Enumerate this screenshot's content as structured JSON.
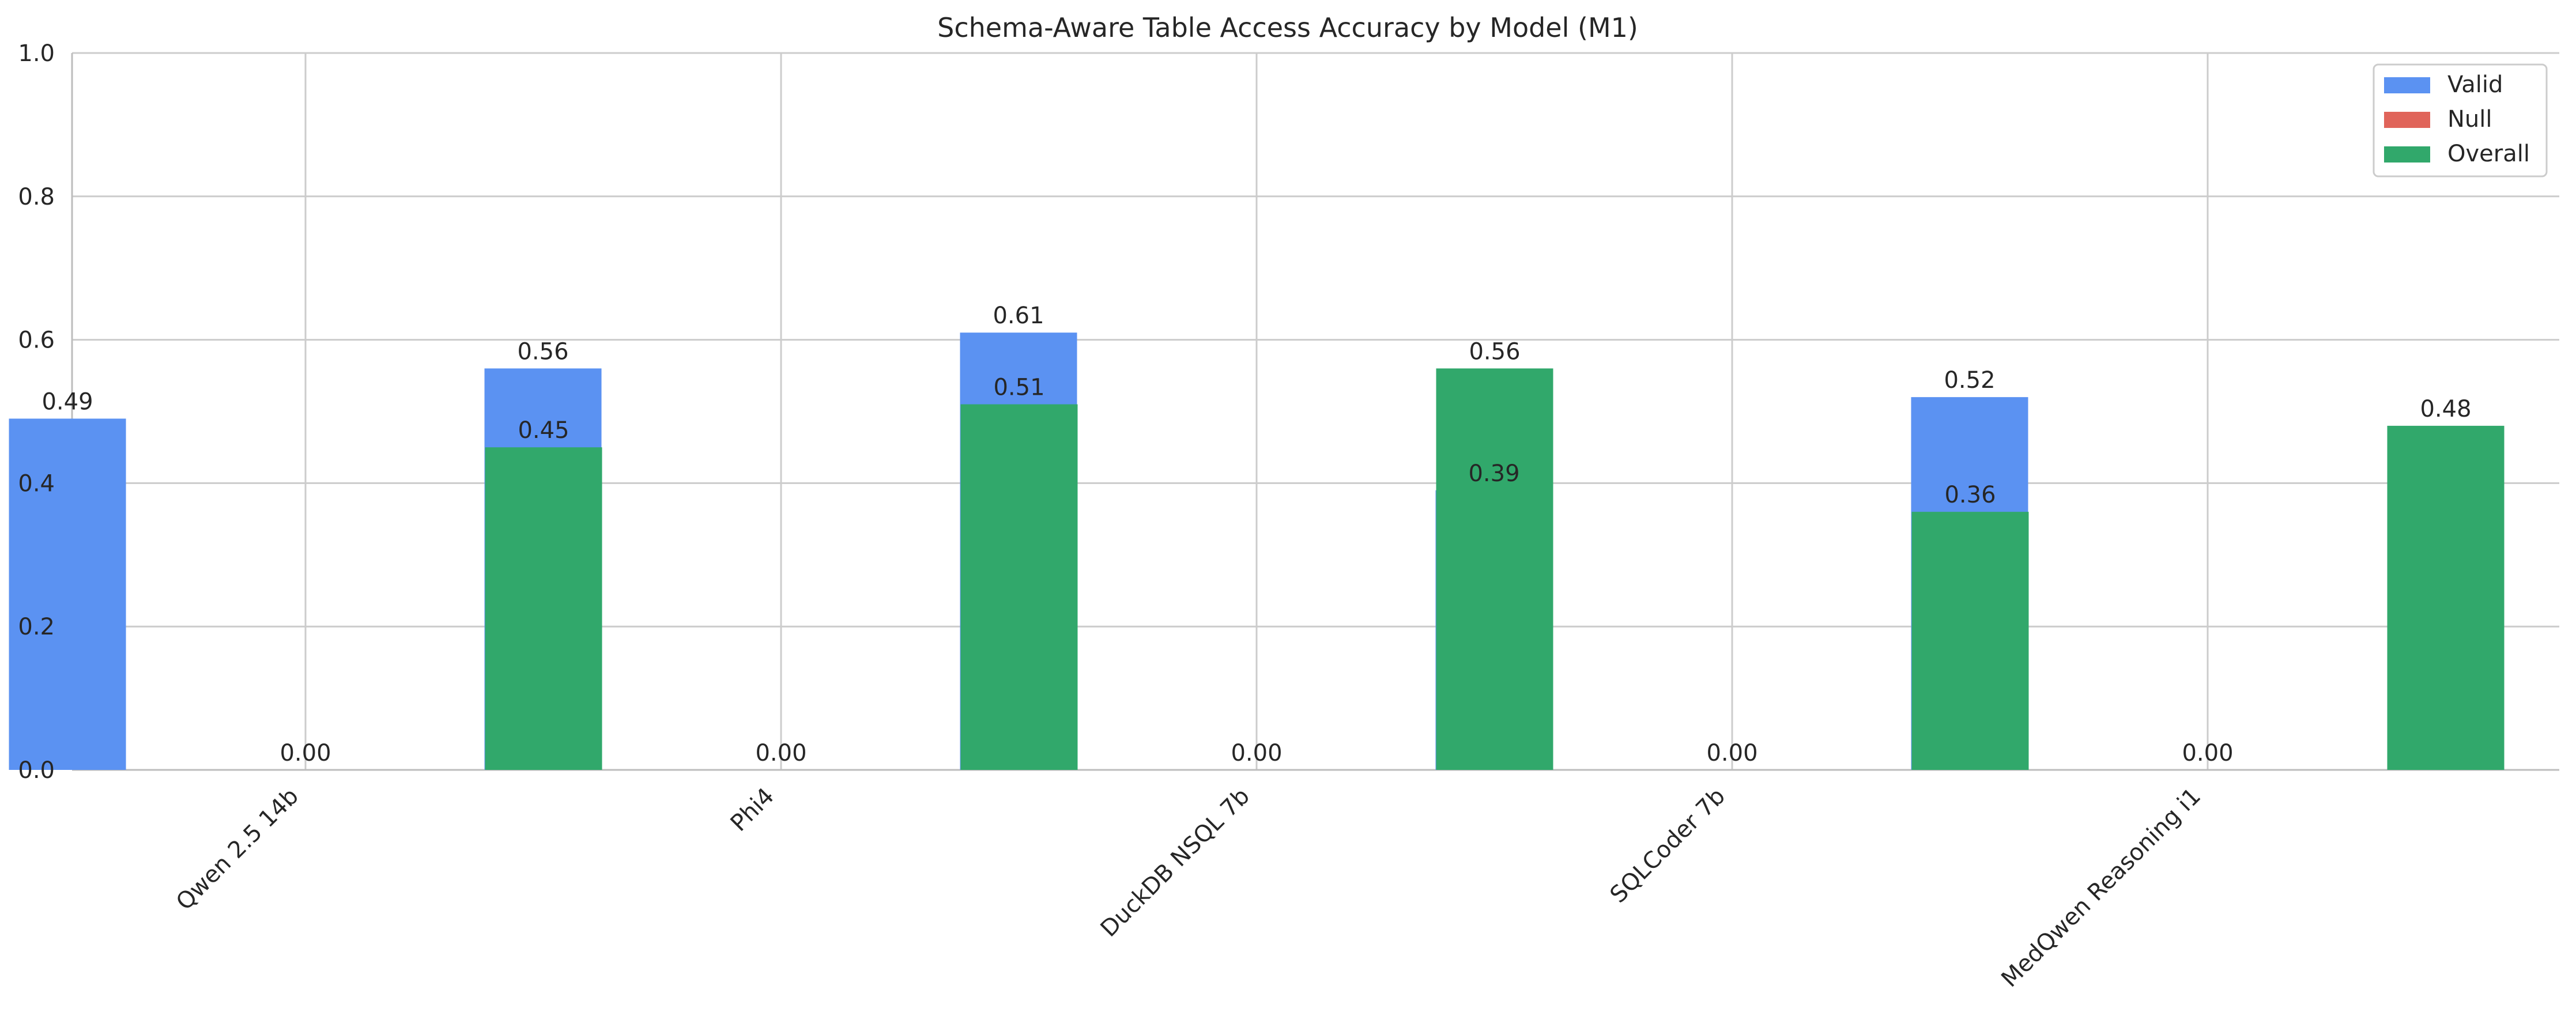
{
  "chart_data": {
    "type": "bar",
    "title": "Schema-Aware Table Access Accuracy by Model (M1)",
    "xlabel": "",
    "ylabel": "",
    "categories": [
      "Qwen 2.5 14b",
      "Phi4",
      "DuckDB NSQL 7b",
      "SQLCoder 7b",
      "MedQwen Reasoning i1"
    ],
    "series": [
      {
        "name": "Valid",
        "color": "#5b92f2",
        "values": [
          0.49,
          0.56,
          0.61,
          0.39,
          0.52
        ]
      },
      {
        "name": "Null",
        "color": "#e0645a",
        "values": [
          0.0,
          0.0,
          0.0,
          0.0,
          0.0
        ]
      },
      {
        "name": "Overall",
        "color": "#31a86b",
        "values": [
          0.45,
          0.51,
          0.56,
          0.36,
          0.48
        ]
      }
    ],
    "value_labels": [
      [
        "0.49",
        "0.56",
        "0.61",
        "0.39",
        "0.52"
      ],
      [
        "0.00",
        "0.00",
        "0.00",
        "0.00",
        "0.00"
      ],
      [
        "0.45",
        "0.51",
        "0.56",
        "0.36",
        "0.48"
      ]
    ],
    "ylim": [
      0,
      1.0
    ],
    "yticks": [
      0.0,
      0.2,
      0.4,
      0.6,
      0.8,
      1.0
    ],
    "ytick_labels": [
      "0.0",
      "0.2",
      "0.4",
      "0.6",
      "0.8",
      "1.0"
    ],
    "grid": true,
    "legend_position": "top-right"
  }
}
